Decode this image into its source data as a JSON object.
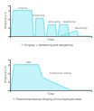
{
  "chart_data": [
    {
      "type": "area",
      "xlabel": "Time",
      "ylabel": "Temperature",
      "caption": "① Forging + hardening and tempering",
      "x": [
        0,
        0.1,
        0.4,
        2.7,
        2.9,
        3.1,
        3.2,
        4.1,
        4.3,
        4.5,
        4.7,
        5.6,
        5.75,
        5.9,
        6.1,
        7.1,
        7.25,
        7.4,
        6.2,
        8.1,
        8.25,
        8.4,
        8.55,
        9.0,
        9.1,
        10.0
      ],
      "values": [
        0,
        0,
        1.0,
        1.0,
        0,
        0,
        0.7,
        0.7,
        0,
        0,
        0.45,
        0.45,
        0,
        0,
        0.45,
        0.45,
        0,
        0,
        0,
        0.2,
        0.2,
        0,
        0,
        0,
        0,
        0
      ],
      "color": "#55ddee",
      "xlim": [
        0,
        10
      ],
      "xticks": [],
      "ylim": [
        0,
        1.2
      ],
      "yticks": [
        0.33,
        0.66,
        1.0
      ],
      "tick_labels": false,
      "annotations": [
        {
          "text": "Forging",
          "x": 1.55,
          "y": 1.06
        },
        {
          "text": "Tempering",
          "x": 3.5,
          "y": 0.78
        },
        {
          "text": "Annealing",
          "x": 5.45,
          "y": 0.53
        },
        {
          "text": "Stabilizing",
          "x": 7.3,
          "y": 0.53
        },
        {
          "text": "Machining",
          "x": 8.75,
          "y": 0.3
        }
      ]
    },
    {
      "type": "area",
      "xlabel": "Time",
      "ylabel": "Temperature",
      "caption": "② Thermomechanical forging of microalloyed steel",
      "x": [
        0,
        0.1,
        0.5,
        1.5,
        3.5,
        3.7,
        4.0,
        7.5,
        9.0,
        9.2,
        10.0
      ],
      "values": [
        0,
        0,
        1.0,
        1.0,
        1.0,
        0.8,
        0.5,
        0.0,
        0.0,
        0,
        0
      ],
      "color": "#55ddee",
      "xlim": [
        0,
        10
      ],
      "xticks": [],
      "ylim": [
        0,
        1.2
      ],
      "yticks": [
        0.33,
        0.66,
        1.0
      ],
      "tick_labels": false,
      "annotations": [
        {
          "text": "TMF",
          "x": 2.3,
          "y": 1.06
        },
        {
          "text": "Controlled cooling",
          "x": 6.2,
          "y": 0.62
        }
      ]
    }
  ]
}
